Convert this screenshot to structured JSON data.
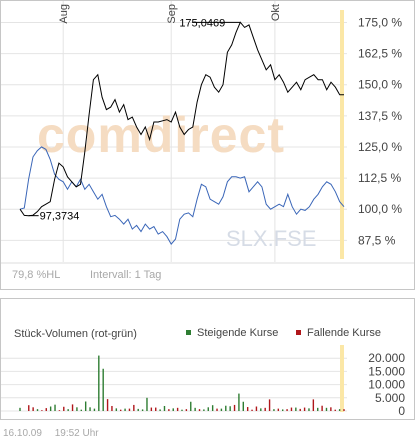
{
  "chart_data": [
    {
      "type": "line",
      "watermark": "comdirect",
      "symbol": "SLX.FSE",
      "month_labels": [
        "Aug",
        "Sep",
        "Okt"
      ],
      "y_ticks": [
        "175,0 %",
        "162,5 %",
        "150,0 %",
        "137,5 %",
        "125,0 %",
        "112,5 %",
        "100,0 %",
        "87,5 %"
      ],
      "ylim": [
        80,
        180
      ],
      "annotations": {
        "max": "175,0469",
        "min": "97,3734"
      },
      "footer_left": "79,8 %HL",
      "footer_right": "Intervall: 1 Tag",
      "series": [
        {
          "color": "#000000",
          "values": [
            100.0,
            97.5,
            97.4,
            97.6,
            99.0,
            101.0,
            102.0,
            103.0,
            112.0,
            118.5,
            117.0,
            113.0,
            111.0,
            109.0,
            110.0,
            123.0,
            138.0,
            152.0,
            154.0,
            145.0,
            140.0,
            141.0,
            144.0,
            139.0,
            142.0,
            136.0,
            137.0,
            133.0,
            130.0,
            133.0,
            128.0,
            135.0,
            135.0,
            135.5,
            136.0,
            135.0,
            139.0,
            133.0,
            130.0,
            132.0,
            133.0,
            143.0,
            150.0,
            154.0,
            153.0,
            149.0,
            147.0,
            150.0,
            163.0,
            166.0,
            171.0,
            175.0469,
            173.0,
            174.0,
            169.0,
            164.0,
            160.0,
            156.0,
            158.0,
            152.0,
            154.0,
            151.0,
            147.0,
            149.0,
            151.0,
            148.0,
            152.0,
            153.0,
            154.0,
            152.0,
            152.0,
            148.0,
            151.0,
            149.0,
            146.0,
            146.0
          ]
        },
        {
          "color": "#3a66b8",
          "values": [
            100.0,
            100.5,
            112.0,
            121.0,
            123.5,
            125.0,
            124.0,
            120.0,
            114.0,
            112.0,
            111.0,
            108.0,
            111.0,
            109.0,
            112.0,
            108.0,
            110.0,
            107.0,
            104.0,
            106.0,
            101.0,
            97.0,
            97.5,
            96.0,
            94.0,
            96.0,
            92.0,
            93.5,
            91.0,
            94.0,
            92.0,
            93.0,
            90.0,
            91.0,
            89.0,
            86.0,
            88.0,
            96.0,
            98.0,
            98.5,
            97.0,
            104.0,
            110.0,
            109.0,
            104.0,
            103.0,
            102.0,
            105.0,
            111.0,
            113.0,
            113.0,
            112.5,
            113.0,
            107.0,
            109.0,
            111.0,
            109.0,
            102.0,
            100.0,
            101.0,
            102.0,
            101.0,
            106.0,
            101.0,
            98.0,
            100.0,
            99.5,
            101.0,
            104.0,
            106.0,
            109.0,
            111.0,
            110.0,
            107.0,
            103.0,
            101.0
          ]
        }
      ]
    },
    {
      "type": "bar",
      "title": "Stück-Volumen (rot-grün)",
      "legend": [
        {
          "label": "Steigende Kurse",
          "color": "#2e7d32"
        },
        {
          "label": "Fallende Kurse",
          "color": "#b0171b"
        }
      ],
      "y_ticks": [
        "20.000",
        "15.000",
        "10.000",
        "5.000",
        "0"
      ],
      "ylim": [
        0,
        25000
      ],
      "bars": [
        {
          "value": 1200,
          "dir": "up"
        },
        {
          "value": 0,
          "dir": "up"
        },
        {
          "value": 2200,
          "dir": "down"
        },
        {
          "value": 1400,
          "dir": "down"
        },
        {
          "value": 700,
          "dir": "up"
        },
        {
          "value": 300,
          "dir": "down"
        },
        {
          "value": 1100,
          "dir": "down"
        },
        {
          "value": 1700,
          "dir": "up"
        },
        {
          "value": 2400,
          "dir": "up"
        },
        {
          "value": 300,
          "dir": "down"
        },
        {
          "value": 1600,
          "dir": "down"
        },
        {
          "value": 700,
          "dir": "up"
        },
        {
          "value": 2500,
          "dir": "down"
        },
        {
          "value": 1400,
          "dir": "up"
        },
        {
          "value": 500,
          "dir": "up"
        },
        {
          "value": 3600,
          "dir": "up"
        },
        {
          "value": 1400,
          "dir": "up"
        },
        {
          "value": 900,
          "dir": "up"
        },
        {
          "value": 21000,
          "dir": "up"
        },
        {
          "value": 16000,
          "dir": "up"
        },
        {
          "value": 4500,
          "dir": "down"
        },
        {
          "value": 1900,
          "dir": "down"
        },
        {
          "value": 1000,
          "dir": "up"
        },
        {
          "value": 500,
          "dir": "down"
        },
        {
          "value": 900,
          "dir": "up"
        },
        {
          "value": 900,
          "dir": "down"
        },
        {
          "value": 2300,
          "dir": "down"
        },
        {
          "value": 800,
          "dir": "up"
        },
        {
          "value": 600,
          "dir": "up"
        },
        {
          "value": 5000,
          "dir": "up"
        },
        {
          "value": 1300,
          "dir": "down"
        },
        {
          "value": 1300,
          "dir": "down"
        },
        {
          "value": 600,
          "dir": "up"
        },
        {
          "value": 1900,
          "dir": "up"
        },
        {
          "value": 700,
          "dir": "down"
        },
        {
          "value": 1000,
          "dir": "up"
        },
        {
          "value": 1200,
          "dir": "down"
        },
        {
          "value": 500,
          "dir": "up"
        },
        {
          "value": 700,
          "dir": "down"
        },
        {
          "value": 3500,
          "dir": "up"
        },
        {
          "value": 1200,
          "dir": "up"
        },
        {
          "value": 700,
          "dir": "down"
        },
        {
          "value": 600,
          "dir": "up"
        },
        {
          "value": 1400,
          "dir": "up"
        },
        {
          "value": 2200,
          "dir": "up"
        },
        {
          "value": 900,
          "dir": "down"
        },
        {
          "value": 900,
          "dir": "up"
        },
        {
          "value": 2000,
          "dir": "up"
        },
        {
          "value": 1800,
          "dir": "up"
        },
        {
          "value": 2300,
          "dir": "down"
        },
        {
          "value": 6600,
          "dir": "up"
        },
        {
          "value": 3500,
          "dir": "up"
        },
        {
          "value": 1500,
          "dir": "down"
        },
        {
          "value": 500,
          "dir": "down"
        },
        {
          "value": 1700,
          "dir": "down"
        },
        {
          "value": 1000,
          "dir": "up"
        },
        {
          "value": 1200,
          "dir": "down"
        },
        {
          "value": 4400,
          "dir": "down"
        },
        {
          "value": 700,
          "dir": "up"
        },
        {
          "value": 900,
          "dir": "down"
        },
        {
          "value": 600,
          "dir": "up"
        },
        {
          "value": 700,
          "dir": "down"
        },
        {
          "value": 1300,
          "dir": "down"
        },
        {
          "value": 1300,
          "dir": "up"
        },
        {
          "value": 800,
          "dir": "down"
        },
        {
          "value": 1300,
          "dir": "down"
        },
        {
          "value": 1000,
          "dir": "up"
        },
        {
          "value": 4400,
          "dir": "down"
        },
        {
          "value": 1200,
          "dir": "up"
        },
        {
          "value": 2000,
          "dir": "down"
        },
        {
          "value": 1200,
          "dir": "up"
        },
        {
          "value": 1400,
          "dir": "down"
        },
        {
          "value": 500,
          "dir": "down"
        },
        {
          "value": 700,
          "dir": "up"
        },
        {
          "value": 700,
          "dir": "down"
        }
      ]
    }
  ],
  "footer": {
    "date": "16.10.09",
    "time": "19:52 Uhr"
  }
}
